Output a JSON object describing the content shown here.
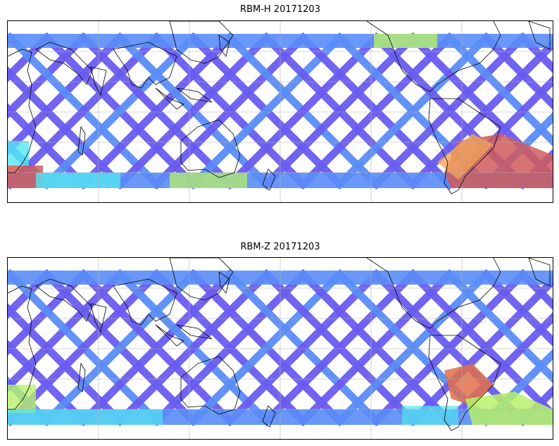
{
  "panels": [
    {
      "title": "RBM-H 20171203",
      "colormap": "jet",
      "colors": {
        "low": "#6a5cf0",
        "mid_low": "#5a8df7",
        "mid": "#54e6f0",
        "mid_high": "#b8f06a",
        "high": "#f0a25a",
        "max": "#d05a5a"
      }
    },
    {
      "title": "RBM-Z 20171203",
      "colormap": "jet",
      "colors": {
        "low": "#6a5cf0",
        "mid_low": "#5a8df7",
        "mid": "#54e6f0",
        "mid_high": "#b8f06a",
        "high": "#f0a25a",
        "max": "#e0704a"
      }
    }
  ],
  "map": {
    "projection": "cylindrical",
    "gridlines": true,
    "coastlines": true,
    "background": "#ffffff"
  }
}
